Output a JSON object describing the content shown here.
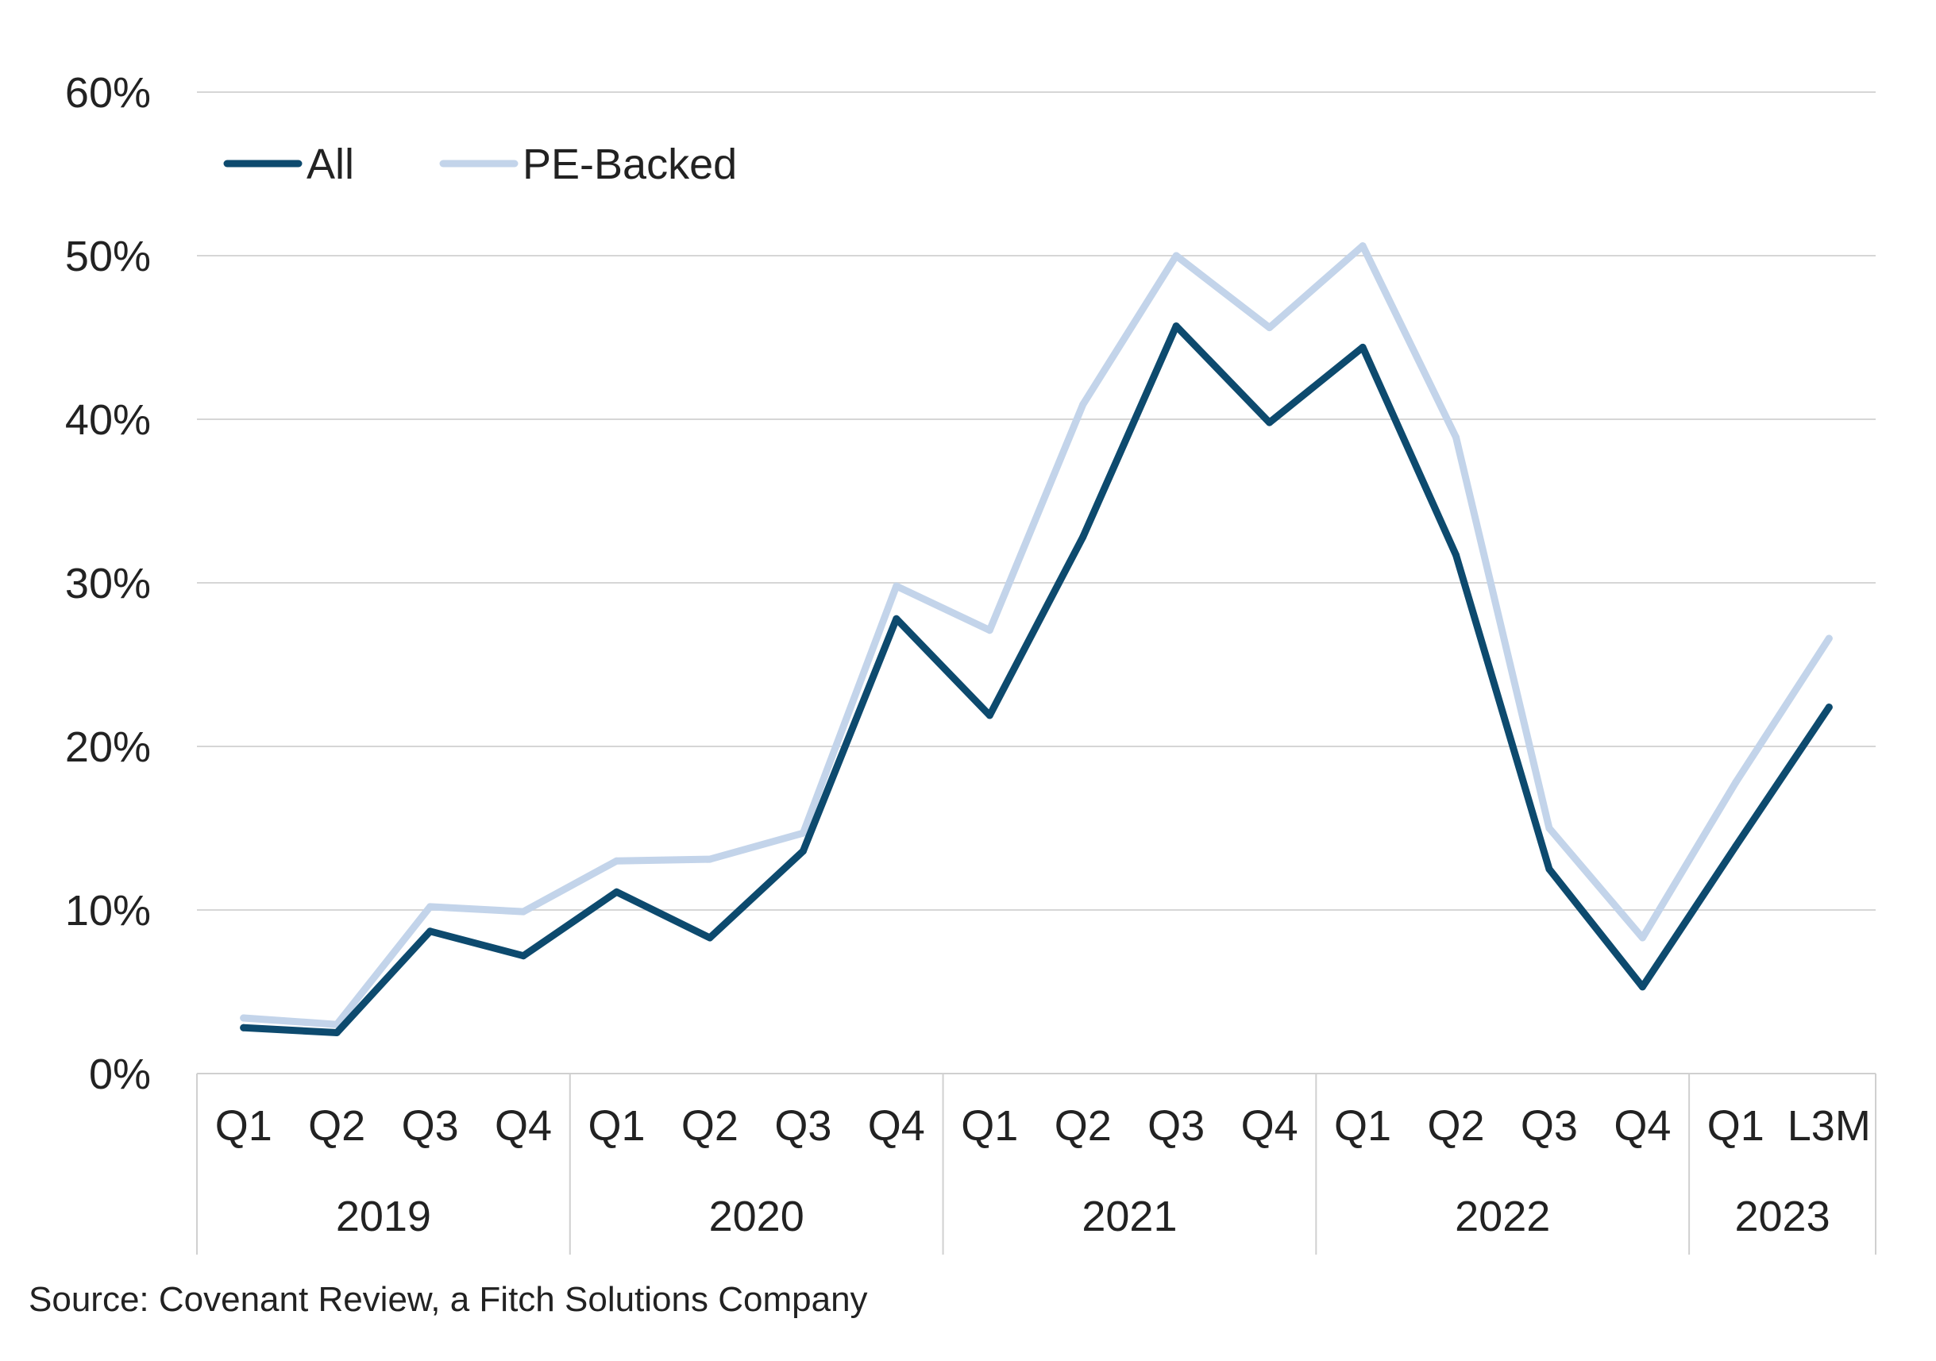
{
  "source": "Source: Covenant Review, a Fitch Solutions Company",
  "chart_data": {
    "type": "line",
    "categories": [
      "Q1",
      "Q2",
      "Q3",
      "Q4",
      "Q1",
      "Q2",
      "Q3",
      "Q4",
      "Q1",
      "Q2",
      "Q3",
      "Q4",
      "Q1",
      "Q2",
      "Q3",
      "Q4",
      "Q1",
      "L3M"
    ],
    "groups": [
      {
        "label": "2019",
        "count": 4
      },
      {
        "label": "2020",
        "count": 4
      },
      {
        "label": "2021",
        "count": 4
      },
      {
        "label": "2022",
        "count": 4
      },
      {
        "label": "2023",
        "count": 2
      }
    ],
    "series": [
      {
        "name": "All",
        "color": "#0d4a6e",
        "values": [
          2.8,
          2.5,
          8.7,
          7.2,
          11.1,
          8.3,
          13.6,
          27.8,
          21.9,
          32.8,
          45.7,
          39.8,
          44.4,
          31.7,
          12.5,
          5.3,
          13.9,
          22.4
        ]
      },
      {
        "name": "PE-Backed",
        "color": "#c3d4ea",
        "values": [
          3.4,
          3.0,
          10.2,
          9.9,
          13.0,
          13.1,
          14.7,
          29.8,
          27.1,
          40.9,
          50.0,
          45.6,
          50.6,
          38.9,
          15.0,
          8.3,
          17.8,
          26.6
        ]
      }
    ],
    "yticks": [
      "0%",
      "10%",
      "20%",
      "30%",
      "40%",
      "50%",
      "60%"
    ],
    "ylim": [
      0,
      60
    ],
    "grid": true,
    "legend_position": "top-left"
  }
}
